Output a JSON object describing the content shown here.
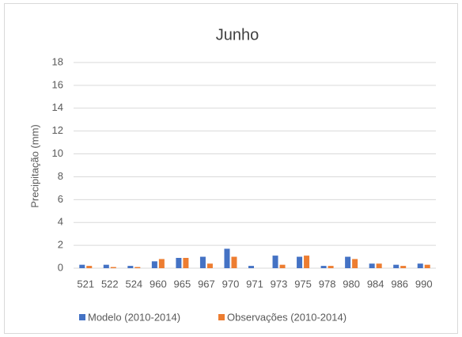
{
  "chart_data": {
    "type": "bar",
    "title": "Junho",
    "y_label": "Precipitação (mm)",
    "categories": [
      "521",
      "522",
      "524",
      "960",
      "965",
      "967",
      "970",
      "971",
      "973",
      "975",
      "978",
      "980",
      "984",
      "986",
      "990"
    ],
    "series": [
      {
        "name": "Modelo (2010-2014)",
        "color": "#4472c4",
        "values": [
          0.3,
          0.3,
          0.2,
          0.6,
          0.9,
          1.0,
          1.7,
          0.2,
          1.1,
          1.0,
          0.2,
          1.0,
          0.4,
          0.3,
          0.4
        ]
      },
      {
        "name": "Observações (2010-2014)",
        "color": "#ed7d31",
        "values": [
          0.2,
          0.1,
          0.1,
          0.8,
          0.9,
          0.4,
          1.0,
          0,
          0.3,
          1.1,
          0.2,
          0.8,
          0.4,
          0.2,
          0.3
        ]
      }
    ],
    "ylim": [
      0,
      18
    ],
    "yticks": [
      0,
      2,
      4,
      6,
      8,
      10,
      12,
      14,
      16,
      18
    ],
    "grid": true,
    "legend": "bottom"
  }
}
